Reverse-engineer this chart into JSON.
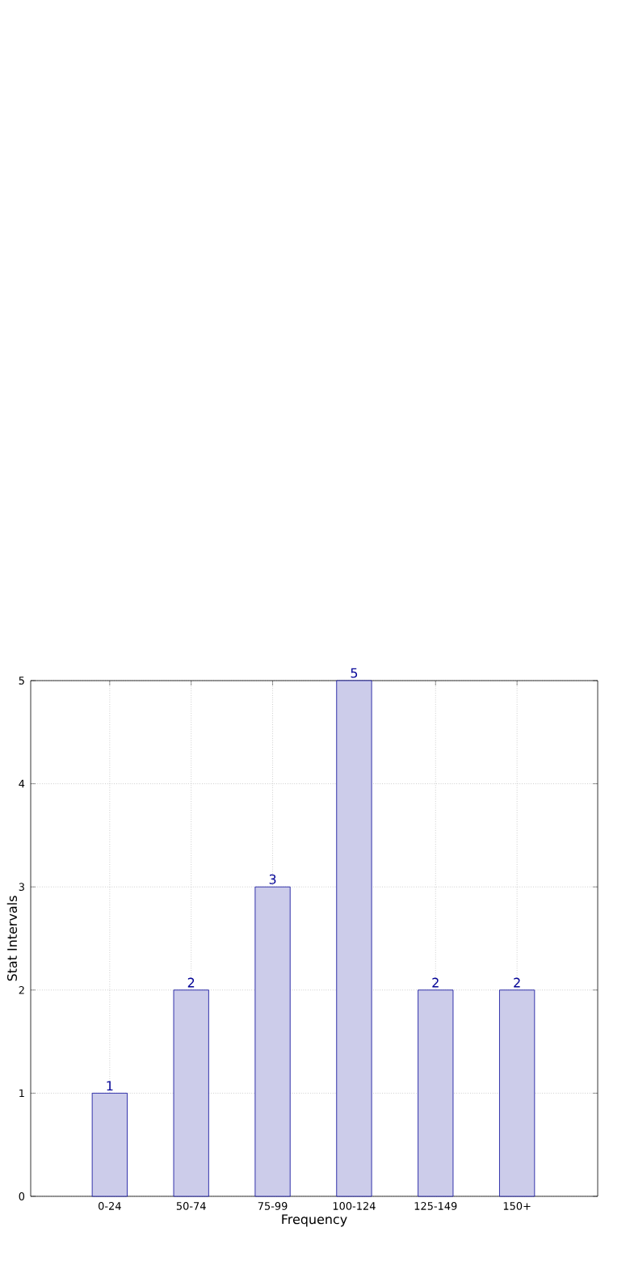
{
  "chart_data": {
    "type": "bar",
    "xlabel": "Frequency",
    "ylabel": "Stat Intervals",
    "categories": [
      "0-24",
      "50-74",
      "75-99",
      "100-124",
      "125-149",
      "150+"
    ],
    "values": [
      1,
      2,
      3,
      5,
      2,
      2
    ],
    "color": "#ccccea",
    "ylim": [
      0,
      5
    ],
    "yticks": [
      0,
      1,
      2,
      3,
      4,
      5
    ],
    "grid": true,
    "data_labels": true
  }
}
